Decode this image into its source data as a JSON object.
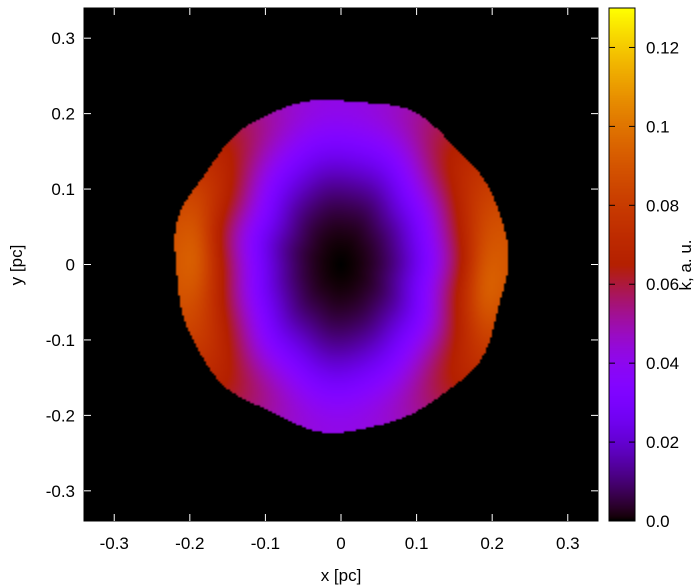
{
  "chart_data": {
    "type": "heatmap",
    "xlabel": "x [pc]",
    "ylabel": "y [pc]",
    "colorbar_label": "k, a. u.",
    "xlim": [
      -0.34,
      0.34
    ],
    "ylim": [
      -0.34,
      0.34
    ],
    "x_ticks": [
      -0.3,
      -0.2,
      -0.1,
      0,
      0.1,
      0.2,
      0.3
    ],
    "x_tick_labels": [
      "-0.3",
      "-0.2",
      "-0.1",
      "0",
      "0.1",
      "0.2",
      "0.3"
    ],
    "y_ticks": [
      -0.3,
      -0.2,
      -0.1,
      0,
      0.1,
      0.2,
      0.3
    ],
    "y_tick_labels": [
      "-0.3",
      "-0.2",
      "-0.1",
      "0",
      "0.1",
      "0.2",
      "0.3"
    ],
    "colorbar_range": [
      0.0,
      0.13
    ],
    "colorbar_ticks": [
      0.0,
      0.02,
      0.04,
      0.06,
      0.08,
      0.1,
      0.12
    ],
    "colorbar_tick_labels": [
      "0.0",
      "0.02",
      "0.04",
      "0.06",
      "0.08",
      "0.1",
      "0.12"
    ],
    "colormap": "gnuplot pm3d rgbformulae 30,31,32 (black-blue-violet-pink-yellow-white)",
    "background_color": "#000000",
    "field": {
      "shape": "circular shell",
      "center": [
        0.0,
        0.0
      ],
      "radius": 0.22,
      "value_at_center": 0.0,
      "value_at_rim_top_bottom": 0.055,
      "value_at_rim_left_right": 0.12,
      "outside_value": 0.0
    },
    "peaks": [
      {
        "x": -0.19,
        "y": 0.02,
        "value": 0.125
      },
      {
        "x": 0.19,
        "y": -0.02,
        "value": 0.125
      }
    ]
  }
}
